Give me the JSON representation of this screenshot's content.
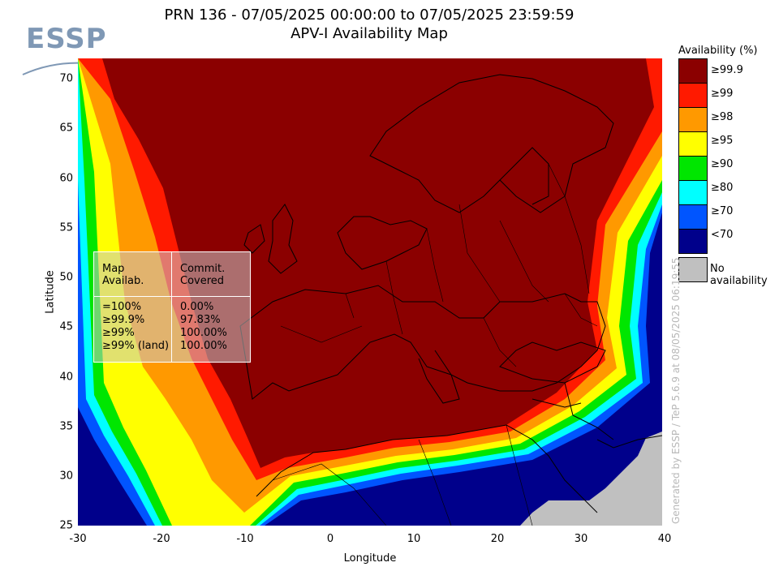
{
  "logo": {
    "text": "ESSP",
    "color": "#7f98b5"
  },
  "title": {
    "line1": "PRN 136 - 07/05/2025 00:00:00 to 07/05/2025 23:59:59",
    "line2": "APV-I Availability Map"
  },
  "axes": {
    "xlabel": "Longitude",
    "ylabel": "Latitude",
    "x_ticks": [
      "-30",
      "-20",
      "-10",
      "0",
      "10",
      "20",
      "30",
      "40"
    ],
    "y_ticks": [
      "70",
      "65",
      "60",
      "55",
      "50",
      "45",
      "40",
      "35",
      "30",
      "25"
    ],
    "x_range": [
      -30,
      40
    ],
    "y_range": [
      25,
      72
    ]
  },
  "legend": {
    "title": "Availability (%)",
    "items": [
      {
        "label": "≥99.9",
        "color": "#8b0000"
      },
      {
        "label": "≥99",
        "color": "#ff1a00"
      },
      {
        "label": "≥98",
        "color": "#ff9900"
      },
      {
        "label": "≥95",
        "color": "#ffff00"
      },
      {
        "label": "≥90",
        "color": "#00e600"
      },
      {
        "label": "≥80",
        "color": "#00ffff"
      },
      {
        "label": "≥70",
        "color": "#0055ff"
      },
      {
        "label": "<70",
        "color": "#00008b"
      }
    ],
    "no_availability": {
      "label": "No availability",
      "color": "#c0c0c0"
    }
  },
  "stats_box": {
    "header_col1": "Map\nAvailab.",
    "header_col2": "Commit.\nCovered",
    "rows": [
      {
        "map": "=100%",
        "covered": "0.00%"
      },
      {
        "map": "≥99.9%",
        "covered": "97.83%"
      },
      {
        "map": "≥99%",
        "covered": "100.00%"
      },
      {
        "map": "≥99% (land)",
        "covered": "100.00%"
      }
    ]
  },
  "watermark": "Generated by ESSP / TeP 5.6.9 at 08/05/2025 06:19:55"
}
